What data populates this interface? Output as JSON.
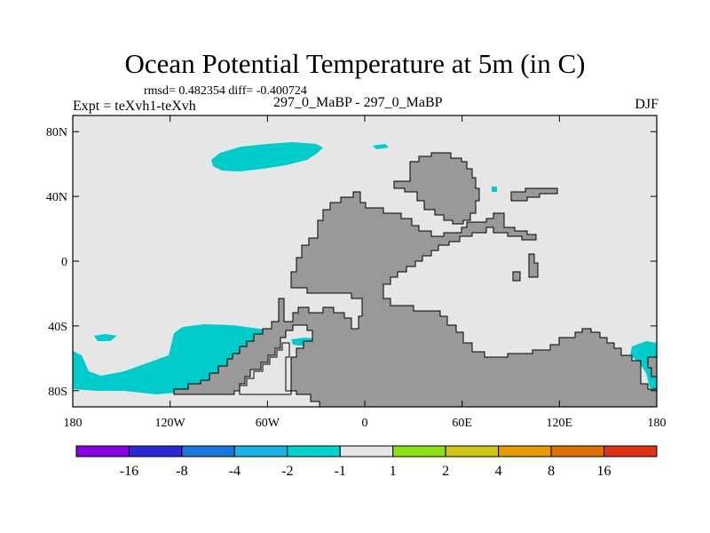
{
  "title": "Ocean Potential Temperature at 5m (in C)",
  "stats_text": "rmsd= 0.482354 diff= -0.400724",
  "expt_label": "Expt = teXvh1-teXvh",
  "subtitle": "297_0_MaBP - 297_0_MaBP",
  "season": "DJF",
  "map": {
    "projection": "cylindrical-equidistant",
    "lon_range": [
      -180,
      180
    ],
    "lat_range": [
      -90,
      90
    ],
    "x_ticks": [
      {
        "lon": -180,
        "label": "180"
      },
      {
        "lon": -120,
        "label": "120W"
      },
      {
        "lon": -60,
        "label": "60W"
      },
      {
        "lon": 0,
        "label": "0"
      },
      {
        "lon": 60,
        "label": "60E"
      },
      {
        "lon": 120,
        "label": "120E"
      },
      {
        "lon": 180,
        "label": "180"
      }
    ],
    "y_ticks": [
      {
        "lat": 80,
        "label": "80N"
      },
      {
        "lat": 40,
        "label": "40N"
      },
      {
        "lat": 0,
        "label": "0"
      },
      {
        "lat": -40,
        "label": "40S"
      },
      {
        "lat": -80,
        "label": "80S"
      }
    ],
    "ocean_color": "#e6e6e6",
    "land_color": "#999999",
    "anomaly_color": "#00cccc"
  },
  "colorbar": {
    "labels": [
      "-16",
      "-8",
      "-4",
      "-2",
      "-1",
      "1",
      "2",
      "4",
      "8",
      "16"
    ],
    "colors": [
      "#8c00e6",
      "#2a28d8",
      "#1478e0",
      "#16b4e6",
      "#00d4d0",
      "#e6e6e6",
      "#8ce014",
      "#d2c814",
      "#e69b00",
      "#e06e00",
      "#e03214"
    ]
  }
}
